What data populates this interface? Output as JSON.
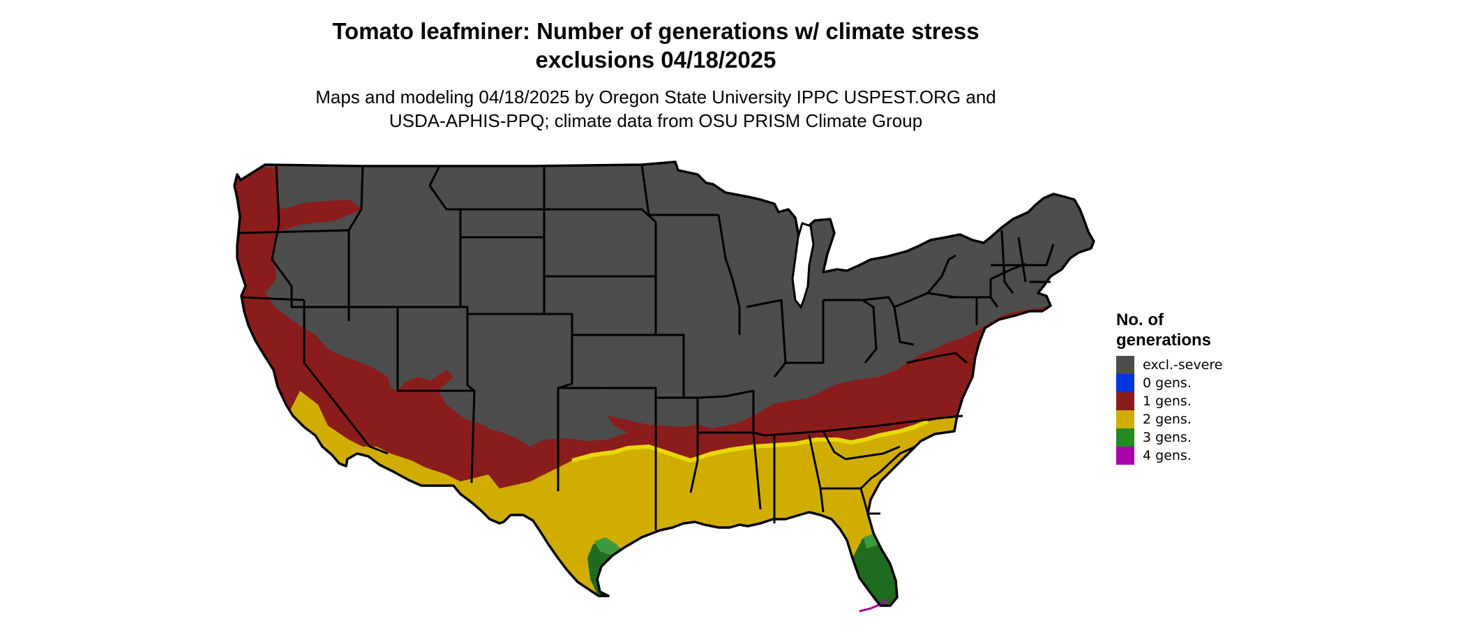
{
  "title_line1": "Tomato leafminer: Number of generations w/ climate stress",
  "title_line2": "exclusions 04/18/2025",
  "subtitle_line1": "Maps and modeling 04/18/2025 by Oregon State University IPPC USPEST.ORG and",
  "subtitle_line2": "USDA-APHIS-PPQ; climate data from OSU PRISM Climate Group",
  "legend": {
    "title_line1": "No. of",
    "title_line2": "generations",
    "items": [
      {
        "label": "excl.-severe",
        "color": "#4d4d4d"
      },
      {
        "label": "0 gens.",
        "color": "#0033dd"
      },
      {
        "label": "1 gens.",
        "color": "#8b1c1c"
      },
      {
        "label": "2 gens.",
        "color": "#d0ad00"
      },
      {
        "label": "3 gens.",
        "color": "#228b22"
      },
      {
        "label": "4 gens.",
        "color": "#aa00aa"
      }
    ]
  },
  "map_colors": {
    "excluded": "#4d4d4d",
    "one_gen": "#8b1c1c",
    "two_gen": "#d0ad00",
    "two_gen_edge": "#e8d800",
    "three_gen": "#1f6b1f",
    "three_gen_light": "#3f9a3f",
    "four_gen": "#aa00aa",
    "state_borders": "#000000"
  }
}
